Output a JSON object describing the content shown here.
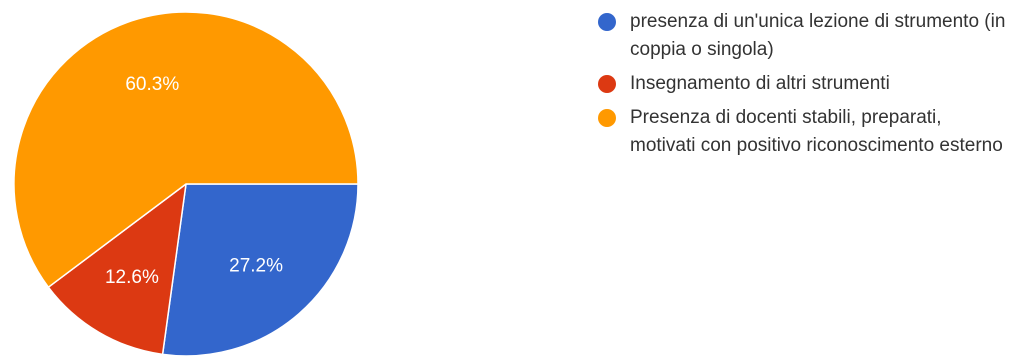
{
  "chart_data": {
    "type": "pie",
    "title": "",
    "slices": [
      {
        "label": "presenza di un'unica lezione di strumento (in coppia o singola)",
        "value": 27.2,
        "display": "27.2%",
        "color": "#3366cc"
      },
      {
        "label": "Insegnamento di altri strumenti",
        "value": 12.6,
        "display": "12.6%",
        "color": "#dc3912"
      },
      {
        "label": "Presenza di docenti stabili, preparati, motivati con positivo riconoscimento esterno",
        "value": 60.3,
        "display": "60.3%",
        "color": "#ff9900"
      }
    ],
    "legend_position": "right"
  }
}
